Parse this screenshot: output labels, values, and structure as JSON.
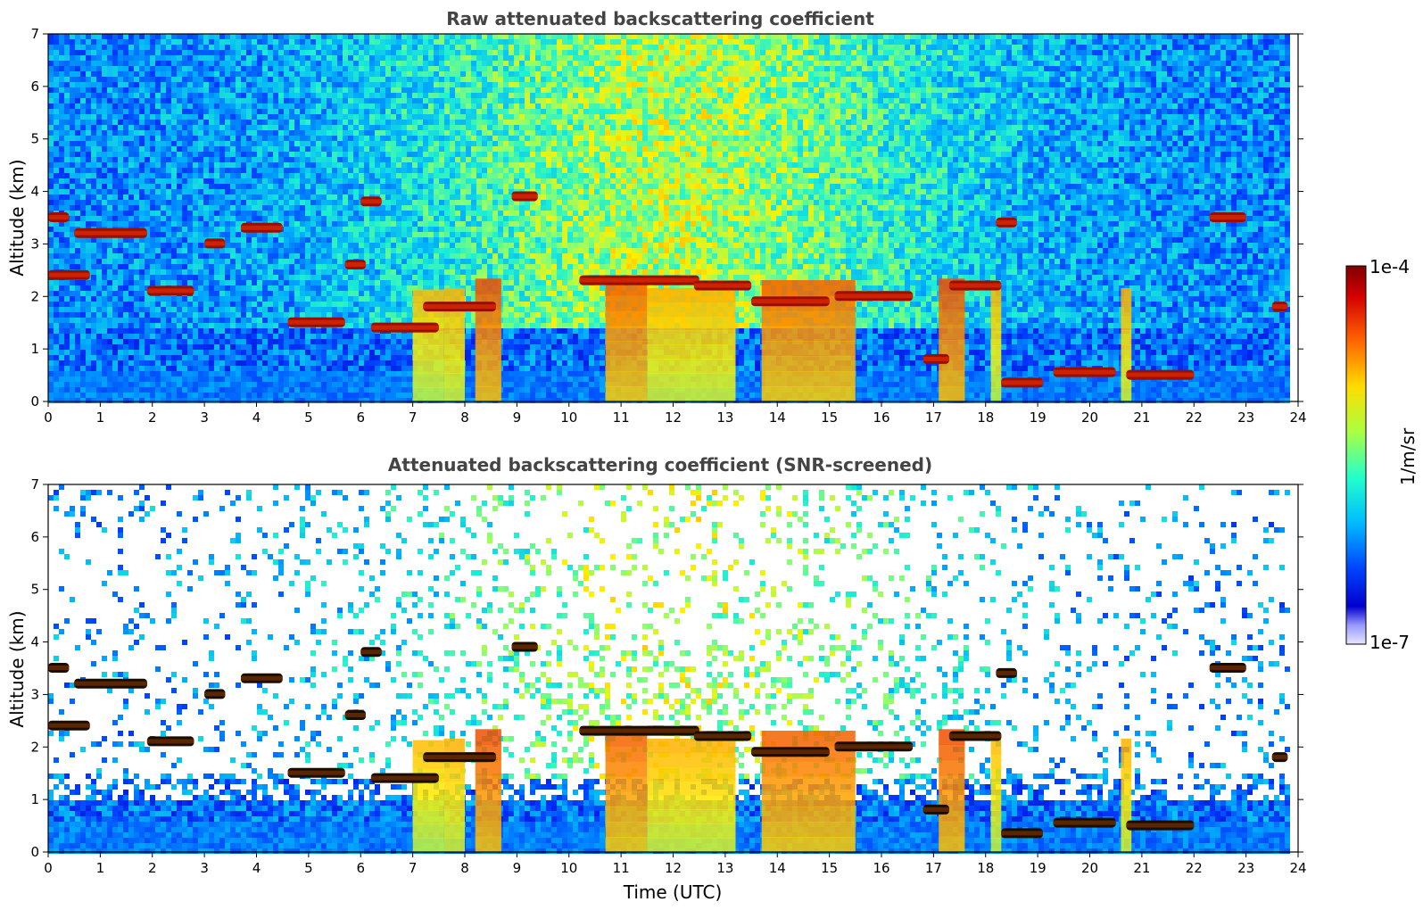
{
  "chart_data": [
    {
      "type": "heatmap",
      "title": "Raw attenuated backscattering coefficient",
      "xlabel": "",
      "ylabel": "Altitude (km)",
      "x_ticks": [
        "0",
        "1",
        "2",
        "3",
        "4",
        "5",
        "6",
        "7",
        "8",
        "9",
        "10",
        "11",
        "12",
        "13",
        "14",
        "15",
        "16",
        "17",
        "18",
        "19",
        "20",
        "21",
        "22",
        "23",
        "24"
      ],
      "y_ticks": [
        "0",
        "1",
        "2",
        "3",
        "4",
        "5",
        "6",
        "7"
      ],
      "xlim": [
        0,
        24
      ],
      "ylim": [
        0,
        7
      ],
      "data_end_hour": 23.8,
      "screened": false,
      "cloud_layers": [
        {
          "t0": 0.0,
          "t1": 0.4,
          "alt": 3.5
        },
        {
          "t0": 0.5,
          "t1": 1.9,
          "alt": 3.2
        },
        {
          "t0": 0.0,
          "t1": 0.8,
          "alt": 2.4
        },
        {
          "t0": 1.9,
          "t1": 2.8,
          "alt": 2.1
        },
        {
          "t0": 3.0,
          "t1": 3.4,
          "alt": 3.0
        },
        {
          "t0": 3.7,
          "t1": 4.5,
          "alt": 3.3
        },
        {
          "t0": 4.6,
          "t1": 5.7,
          "alt": 1.5
        },
        {
          "t0": 5.7,
          "t1": 6.1,
          "alt": 2.6
        },
        {
          "t0": 6.0,
          "t1": 6.4,
          "alt": 3.8
        },
        {
          "t0": 6.2,
          "t1": 7.5,
          "alt": 1.4
        },
        {
          "t0": 7.2,
          "t1": 8.6,
          "alt": 1.8
        },
        {
          "t0": 8.9,
          "t1": 9.4,
          "alt": 3.9
        },
        {
          "t0": 10.2,
          "t1": 11.2,
          "alt": 2.3
        },
        {
          "t0": 11.0,
          "t1": 12.5,
          "alt": 2.3
        },
        {
          "t0": 12.4,
          "t1": 13.5,
          "alt": 2.2
        },
        {
          "t0": 13.5,
          "t1": 15.0,
          "alt": 1.9
        },
        {
          "t0": 15.1,
          "t1": 16.6,
          "alt": 2.0
        },
        {
          "t0": 16.8,
          "t1": 17.3,
          "alt": 0.8
        },
        {
          "t0": 17.3,
          "t1": 18.3,
          "alt": 2.2
        },
        {
          "t0": 18.2,
          "t1": 18.6,
          "alt": 3.4
        },
        {
          "t0": 18.3,
          "t1": 19.1,
          "alt": 0.35
        },
        {
          "t0": 19.3,
          "t1": 20.5,
          "alt": 0.55
        },
        {
          "t0": 20.7,
          "t1": 22.0,
          "alt": 0.5
        },
        {
          "t0": 22.3,
          "t1": 23.0,
          "alt": 3.5
        },
        {
          "t0": 23.5,
          "t1": 23.8,
          "alt": 1.8
        }
      ],
      "precip_columns": [
        {
          "t0": 7.0,
          "t1": 7.6,
          "intensity": 0.55
        },
        {
          "t0": 7.6,
          "t1": 8.0,
          "intensity": 0.6
        },
        {
          "t0": 8.2,
          "t1": 8.7,
          "intensity": 0.9
        },
        {
          "t0": 10.7,
          "t1": 11.5,
          "intensity": 0.85
        },
        {
          "t0": 11.5,
          "t1": 13.2,
          "intensity": 0.6
        },
        {
          "t0": 13.7,
          "t1": 15.5,
          "intensity": 0.85
        },
        {
          "t0": 17.1,
          "t1": 17.6,
          "intensity": 0.9
        },
        {
          "t0": 18.1,
          "t1": 18.3,
          "intensity": 0.55
        },
        {
          "t0": 20.6,
          "t1": 20.8,
          "intensity": 0.6
        }
      ]
    },
    {
      "type": "heatmap",
      "title": "Attenuated backscattering coefficient (SNR-screened)",
      "xlabel": "Time (UTC)",
      "ylabel": "Altitude (km)",
      "x_ticks": [
        "0",
        "1",
        "2",
        "3",
        "4",
        "5",
        "6",
        "7",
        "8",
        "9",
        "10",
        "11",
        "12",
        "13",
        "14",
        "15",
        "16",
        "17",
        "18",
        "19",
        "20",
        "21",
        "22",
        "23",
        "24"
      ],
      "y_ticks": [
        "0",
        "1",
        "2",
        "3",
        "4",
        "5",
        "6",
        "7"
      ],
      "xlim": [
        0,
        24
      ],
      "ylim": [
        0,
        7
      ],
      "data_end_hour": 23.8,
      "screened": true
    }
  ],
  "colorbar": {
    "label": "1/m/sr",
    "max_label": "1e-4",
    "min_label": "1e-7",
    "scale": "log",
    "colors": [
      "#7f0000",
      "#ff0000",
      "#ff9900",
      "#ffff00",
      "#80ff80",
      "#00ffff",
      "#0080ff",
      "#0000ff",
      "#00008f",
      "#e6e6ff"
    ]
  }
}
